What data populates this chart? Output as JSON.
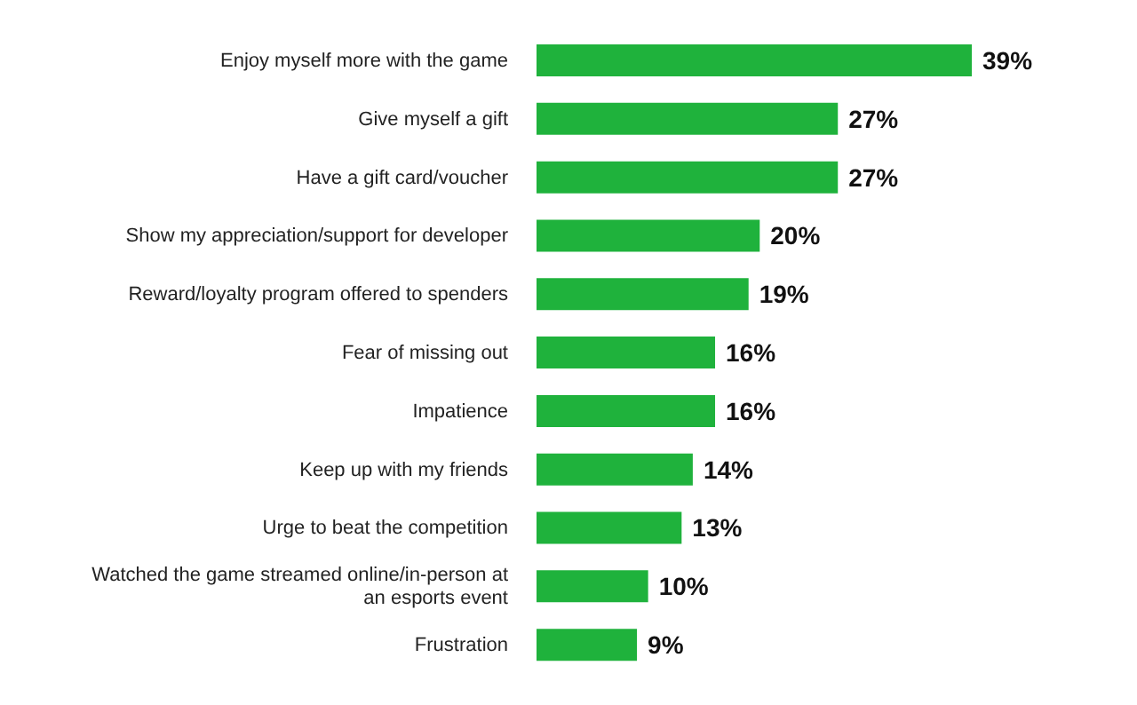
{
  "chart_data": {
    "type": "bar",
    "orientation": "horizontal",
    "categories": [
      "Enjoy myself more with the game",
      "Give myself a gift",
      "Have a gift card/voucher",
      "Show my appreciation/support for developer",
      "Reward/loyalty program offered to spenders",
      "Fear of missing out",
      "Impatience",
      "Keep up with my friends",
      "Urge to beat the competition",
      "Watched the game streamed online/in-person at an esports event",
      "Frustration"
    ],
    "values": [
      39,
      27,
      27,
      20,
      19,
      16,
      16,
      14,
      13,
      10,
      9
    ],
    "value_labels": [
      "39%",
      "27%",
      "27%",
      "20%",
      "19%",
      "16%",
      "16%",
      "14%",
      "13%",
      "10%",
      "9%"
    ],
    "color": "#1fb23c",
    "grid": false,
    "legend": false
  }
}
